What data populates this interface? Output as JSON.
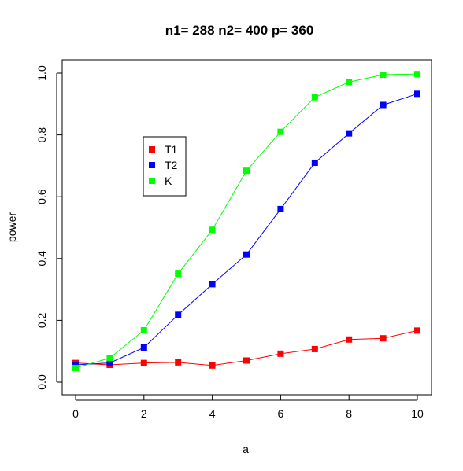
{
  "chart_data": {
    "type": "line",
    "title": "n1= 288 n2= 400 p= 360",
    "xlabel": "a",
    "ylabel": "power",
    "x": [
      0,
      1,
      2,
      3,
      4,
      5,
      6,
      7,
      8,
      9,
      10
    ],
    "xlim": [
      0,
      10
    ],
    "ylim": [
      0,
      1
    ],
    "x_ticks": [
      "0",
      "2",
      "4",
      "6",
      "8",
      "10"
    ],
    "y_ticks": [
      "0.0",
      "0.2",
      "0.4",
      "0.6",
      "0.8",
      "1.0"
    ],
    "grid": false,
    "legend_position": "upper-left",
    "series": [
      {
        "name": "T1",
        "color": "#ff0000",
        "values": [
          0.062,
          0.056,
          0.062,
          0.064,
          0.054,
          0.07,
          0.092,
          0.107,
          0.138,
          0.142,
          0.167
        ]
      },
      {
        "name": "T2",
        "color": "#0000ff",
        "values": [
          0.056,
          0.062,
          0.112,
          0.218,
          0.317,
          0.413,
          0.56,
          0.71,
          0.805,
          0.897,
          0.933
        ]
      },
      {
        "name": "K",
        "color": "#00ff00",
        "values": [
          0.046,
          0.078,
          0.168,
          0.351,
          0.493,
          0.684,
          0.81,
          0.922,
          0.971,
          0.995,
          0.997
        ]
      }
    ]
  }
}
